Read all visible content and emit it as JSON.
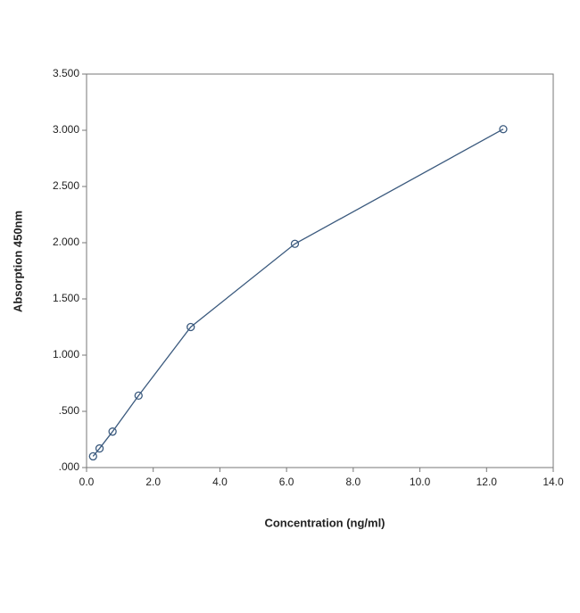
{
  "chart_data": {
    "type": "line",
    "x_label": "Concentration (ng/ml)",
    "y_label": "Absorption 450nm",
    "x": [
      0.195,
      0.39,
      0.78,
      1.56,
      3.125,
      6.25,
      12.5
    ],
    "series": [
      {
        "name": "Absorption",
        "color": "#3b5a7e",
        "values": [
          0.1,
          0.17,
          0.32,
          0.64,
          1.25,
          1.99,
          3.01
        ]
      }
    ],
    "xlim": [
      0,
      14
    ],
    "xticks": [
      {
        "value": 0,
        "label": "0.0"
      },
      {
        "value": 2,
        "label": "2.0"
      },
      {
        "value": 4,
        "label": "4.0"
      },
      {
        "value": 6,
        "label": "6.0"
      },
      {
        "value": 8,
        "label": "8.0"
      },
      {
        "value": 10,
        "label": "10.0"
      },
      {
        "value": 12,
        "label": "12.0"
      },
      {
        "value": 14,
        "label": "14.0"
      }
    ],
    "ylim": [
      0,
      3.5
    ],
    "yticks": [
      {
        "value": 0,
        "label": ".000"
      },
      {
        "value": 0.5,
        "label": ".500"
      },
      {
        "value": 1,
        "label": "1.000"
      },
      {
        "value": 1.5,
        "label": "1.500"
      },
      {
        "value": 2,
        "label": "2.000"
      },
      {
        "value": 2.5,
        "label": "2.500"
      },
      {
        "value": 3,
        "label": "3.000"
      },
      {
        "value": 3.5,
        "label": "3.500"
      }
    ],
    "grid": false
  }
}
